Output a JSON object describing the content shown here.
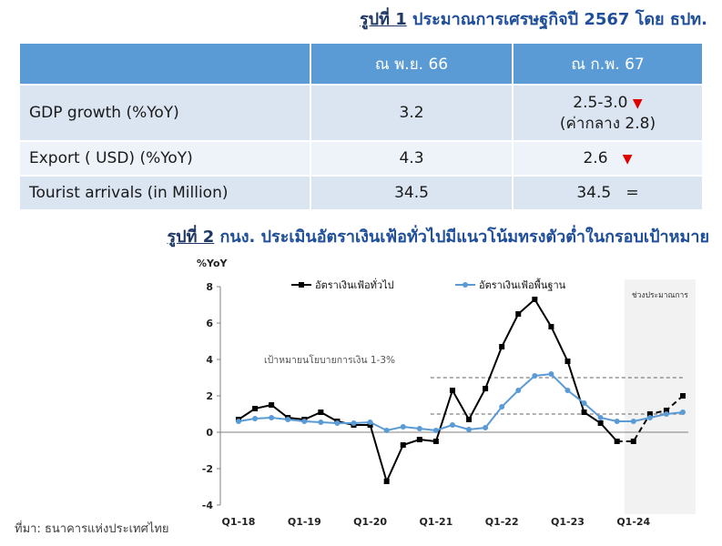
{
  "figure1": {
    "num": "รูปที่ 1",
    "text": "ประมาณการเศรษฐกิจปี 2567 โดย ธปท.",
    "headers": [
      "",
      "ณ พ.ย. 66",
      "ณ ก.พ. 67"
    ],
    "rows": [
      {
        "label": "GDP growth (%YoY)",
        "col1": "3.2",
        "col2_line1": "2.5-3.0",
        "col2_line2": "(ค่ากลาง 2.8)",
        "marker": "▼"
      },
      {
        "label": "Export ( USD) (%YoY)",
        "col1": "4.3",
        "col2_line1": "2.6",
        "col2_line2": "",
        "marker": "▼"
      },
      {
        "label": "Tourist arrivals (in Million)",
        "col1": "34.5",
        "col2_line1": "34.5",
        "col2_line2": "",
        "marker": "="
      }
    ]
  },
  "figure2": {
    "num": "รูปที่ 2",
    "text": "กนง. ประเมินอัตราเงินเฟ้อทั่วไปมีแนวโน้มทรงตัวต่ำในกรอบเป้าหมาย"
  },
  "source": "ที่มา: ธนาคารแห่งประเทศไทย",
  "chart_data": {
    "type": "line",
    "ylabel": "%YoY",
    "ylim": [
      -4,
      8
    ],
    "yticks": [
      "-4",
      "-2",
      "0",
      "2",
      "4",
      "6",
      "8"
    ],
    "xticks": [
      "Q1-18",
      "Q1-19",
      "Q1-20",
      "Q1-21",
      "Q1-22",
      "Q1-23",
      "Q1-24"
    ],
    "categories": [
      "Q1-18",
      "Q2-18",
      "Q3-18",
      "Q4-18",
      "Q1-19",
      "Q2-19",
      "Q3-19",
      "Q4-19",
      "Q1-20",
      "Q2-20",
      "Q3-20",
      "Q4-20",
      "Q1-21",
      "Q2-21",
      "Q3-21",
      "Q4-21",
      "Q1-22",
      "Q2-22",
      "Q3-22",
      "Q4-22",
      "Q1-23",
      "Q2-23",
      "Q3-23",
      "Q4-23",
      "Q1-24",
      "Q2-24",
      "Q3-24",
      "Q4-24"
    ],
    "forecast_start_index": 24,
    "forecast_label": "ช่วงประมาณการ",
    "target_band": {
      "low": 1,
      "high": 3,
      "label": "เป้าหมายนโยบายการเงิน 1-3%"
    },
    "series": [
      {
        "name": "อัตราเงินเฟ้อทั่วไป",
        "color": "#000000",
        "values": [
          0.7,
          1.3,
          1.5,
          0.8,
          0.7,
          1.1,
          0.6,
          0.4,
          0.4,
          -2.7,
          -0.7,
          -0.4,
          -0.5,
          2.3,
          0.7,
          2.4,
          4.7,
          6.5,
          7.3,
          5.8,
          3.9,
          1.1,
          0.5,
          -0.5,
          -0.5,
          1.0,
          1.2,
          2.0
        ]
      },
      {
        "name": "อัตราเงินเฟ้อพื้นฐาน",
        "color": "#5b9bd5",
        "values": [
          0.6,
          0.75,
          0.8,
          0.7,
          0.6,
          0.55,
          0.5,
          0.5,
          0.55,
          0.1,
          0.3,
          0.2,
          0.1,
          0.4,
          0.15,
          0.25,
          1.4,
          2.3,
          3.1,
          3.2,
          2.3,
          1.6,
          0.8,
          0.6,
          0.6,
          0.8,
          1.0,
          1.1
        ]
      }
    ]
  }
}
